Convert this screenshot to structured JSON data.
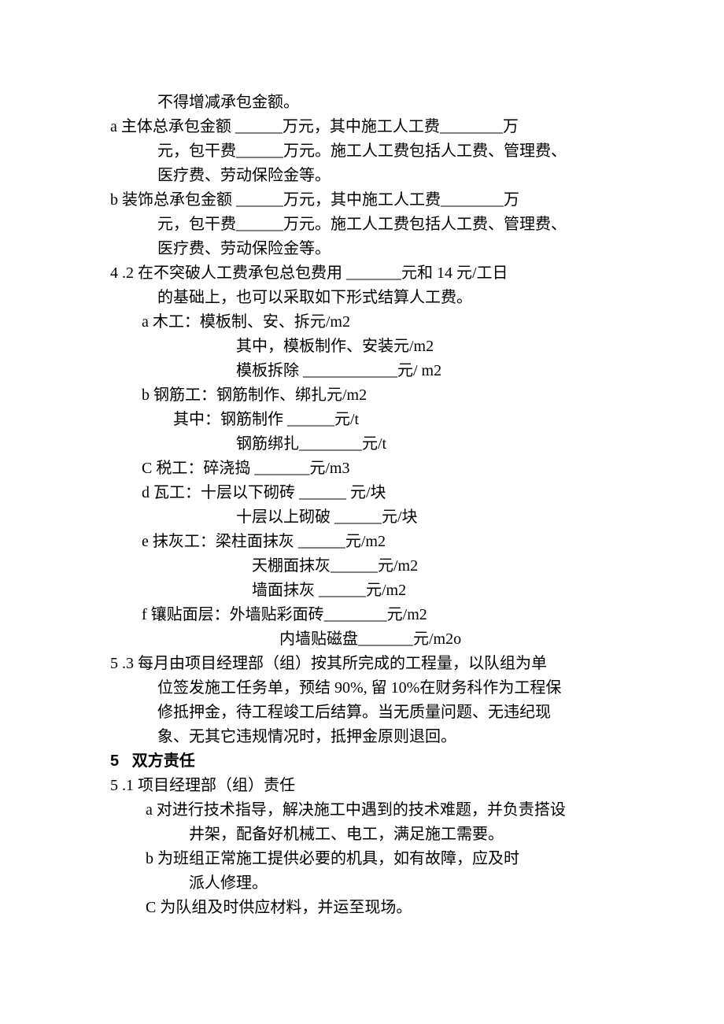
{
  "lines": [
    {
      "cls": "indent-1",
      "text": "不得增减承包金额。"
    },
    {
      "cls": "indent-2",
      "text": "a 主体总承包金额 ______万元，其中施工人工费________万"
    },
    {
      "cls": "indent-3",
      "text": "元，包干费______万元。施工人工费包括人工费、管理费、"
    },
    {
      "cls": "indent-3",
      "text": "医疗费、劳动保险金等。"
    },
    {
      "cls": "indent-2",
      "text": "b 装饰总承包金额 ______万元，其中施工人工费________万"
    },
    {
      "cls": "indent-3",
      "text": "元，包干费______万元。施工人工费包括人工费、管理费、"
    },
    {
      "cls": "indent-3",
      "text": "医疗费、劳动保险金等。"
    },
    {
      "cls": "indent-2",
      "text": "4 .2 在不突破人工费承包总包费用 _______元和 14 元/工日"
    },
    {
      "cls": "indent-3",
      "text": "的基础上，也可以采取如下形式结算人工费。"
    },
    {
      "cls": "indent-7",
      "text": "a 木工：模板制、安、拆元/m2"
    },
    {
      "cls": "indent-5",
      "text": "其中，模板制作、安装元/m2"
    },
    {
      "cls": "indent-5",
      "text": "模板拆除 ____________元/ m2"
    },
    {
      "cls": "indent-7",
      "text": "b 钢筋工：钢筋制作、绑扎元/m2"
    },
    {
      "cls": "indent-9",
      "text": "其中：钢筋制作 ______元/t"
    },
    {
      "cls": "indent-5",
      "text": "钢筋绑扎________元/t"
    },
    {
      "cls": "indent-7",
      "text": "C 税工：碎浇捣 _______元/m3"
    },
    {
      "cls": "indent-7",
      "text": "d 瓦工：十层以下砌砖 ______ 元/块"
    },
    {
      "cls": "indent-5",
      "text": "十层以上砌破 ______元/块"
    },
    {
      "cls": "indent-7",
      "text": "e 抹灰工：梁柱面抹灰 ______元/m2"
    },
    {
      "cls": "indent-6",
      "text": "天棚面抹灰______元/m2"
    },
    {
      "cls": "indent-6",
      "text": "墙面抹灰 ______元/m2"
    },
    {
      "cls": "indent-7",
      "text": "f 镶贴面层：外墙贴彩面砖________元/m2"
    },
    {
      "cls": "indent-6",
      "text": "       内墙贴磁盘_______元/m2o"
    },
    {
      "cls": "indent-2",
      "text": "5 .3 每月由项目经理部（组）按其所完成的工程量，以队组为单"
    },
    {
      "cls": "indent-3",
      "text": "位签发施工任务单，预结 90%, 留 10%在财务科作为工程保"
    },
    {
      "cls": "indent-3",
      "text": "修抵押金，待工程竣工后结算。当无质量问题、无违纪现"
    },
    {
      "cls": "indent-3",
      "text": "象、无其它违规情况时，抵押金原则退回。"
    },
    {
      "cls": "section-head bold",
      "text": "5   双方责任"
    },
    {
      "cls": "indent-2",
      "text": "5 .1 项目经理部（组）责任"
    },
    {
      "cls": "indent-7",
      "text": " a 对进行技术指导，解决施工中遇到的技术难题，并负责搭设"
    },
    {
      "cls": "indent-4",
      "text": "井架，配备好机械工、电工，满足施工需要。"
    },
    {
      "cls": "indent-7",
      "text": " b 为班组正常施工提供必要的机具，如有故障，应及时"
    },
    {
      "cls": "indent-4",
      "text": "派人修理。"
    },
    {
      "cls": "indent-7",
      "text": " C 为队组及时供应材料，并运至现场。"
    }
  ]
}
